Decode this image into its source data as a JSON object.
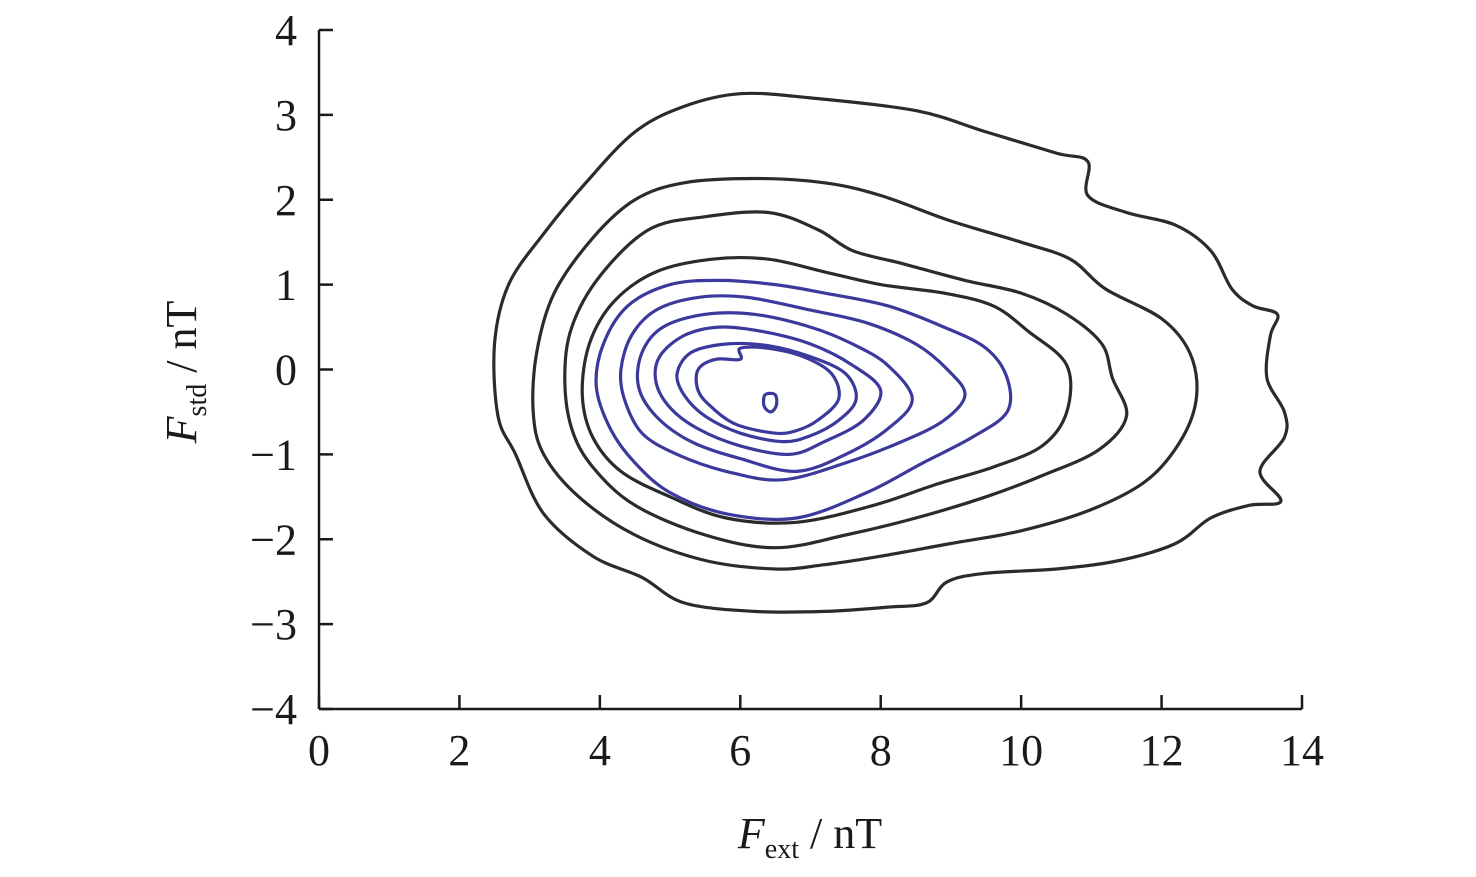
{
  "chart_data": {
    "type": "contour",
    "title": "",
    "xlabel": {
      "symbol": "F",
      "subscript": "ext",
      "unit": " / nT"
    },
    "ylabel": {
      "symbol": "F",
      "subscript": "std",
      "unit": " / nT"
    },
    "xlim": [
      0,
      14
    ],
    "ylim": [
      -4,
      4
    ],
    "x_ticks": [
      0,
      2,
      4,
      6,
      8,
      10,
      12,
      14
    ],
    "y_ticks": [
      -4,
      -3,
      -2,
      -1,
      0,
      1,
      2,
      3,
      4
    ],
    "x_tick_labels": [
      "0",
      "2",
      "4",
      "6",
      "8",
      "10",
      "12",
      "14"
    ],
    "y_tick_labels": [
      "−4",
      "−3",
      "−2",
      "−1",
      "0",
      "1",
      "2",
      "3",
      "4"
    ],
    "grid": false,
    "legend": "none",
    "colors": {
      "outer_contours": "#2b2b2b",
      "inner_contours": "#3b3a9c",
      "axis": "#1a1a1a"
    },
    "contours": [
      {
        "level_rank": 1,
        "color": "outer",
        "points": [
          [
            6.2,
            -2.85
          ],
          [
            5.2,
            -2.75
          ],
          [
            4.6,
            -2.45
          ],
          [
            3.9,
            -2.2
          ],
          [
            3.2,
            -1.7
          ],
          [
            2.8,
            -1.0
          ],
          [
            2.55,
            -0.55
          ],
          [
            2.5,
            0.3
          ],
          [
            2.7,
            1.0
          ],
          [
            3.2,
            1.6
          ],
          [
            3.8,
            2.2
          ],
          [
            4.5,
            2.8
          ],
          [
            5.2,
            3.1
          ],
          [
            6.0,
            3.25
          ],
          [
            7.0,
            3.2
          ],
          [
            8.5,
            3.05
          ],
          [
            9.5,
            2.8
          ],
          [
            10.5,
            2.55
          ],
          [
            10.95,
            2.45
          ],
          [
            10.95,
            2.05
          ],
          [
            11.5,
            1.85
          ],
          [
            12.2,
            1.7
          ],
          [
            12.7,
            1.4
          ],
          [
            13.0,
            0.95
          ],
          [
            13.3,
            0.75
          ],
          [
            13.65,
            0.65
          ],
          [
            13.55,
            0.4
          ],
          [
            13.5,
            -0.1
          ],
          [
            13.75,
            -0.5
          ],
          [
            13.75,
            -0.8
          ],
          [
            13.4,
            -1.2
          ],
          [
            13.7,
            -1.55
          ],
          [
            13.25,
            -1.6
          ],
          [
            12.7,
            -1.75
          ],
          [
            12.2,
            -2.05
          ],
          [
            11.4,
            -2.25
          ],
          [
            10.5,
            -2.35
          ],
          [
            9.5,
            -2.4
          ],
          [
            8.95,
            -2.5
          ],
          [
            8.65,
            -2.75
          ],
          [
            8.1,
            -2.8
          ],
          [
            7.2,
            -2.85
          ]
        ]
      },
      {
        "level_rank": 2,
        "color": "outer",
        "points": [
          [
            6.5,
            -2.35
          ],
          [
            5.5,
            -2.25
          ],
          [
            4.5,
            -1.95
          ],
          [
            3.7,
            -1.5
          ],
          [
            3.2,
            -1.0
          ],
          [
            3.05,
            -0.5
          ],
          [
            3.1,
            0.2
          ],
          [
            3.35,
            0.9
          ],
          [
            3.9,
            1.55
          ],
          [
            4.5,
            2.0
          ],
          [
            5.2,
            2.2
          ],
          [
            6.2,
            2.25
          ],
          [
            7.2,
            2.2
          ],
          [
            8.0,
            2.05
          ],
          [
            9.0,
            1.75
          ],
          [
            10.0,
            1.5
          ],
          [
            10.7,
            1.3
          ],
          [
            11.2,
            0.95
          ],
          [
            12.0,
            0.6
          ],
          [
            12.4,
            0.2
          ],
          [
            12.5,
            -0.3
          ],
          [
            12.3,
            -0.8
          ],
          [
            11.8,
            -1.3
          ],
          [
            11.0,
            -1.65
          ],
          [
            10.0,
            -1.9
          ],
          [
            9.0,
            -2.05
          ],
          [
            8.0,
            -2.2
          ],
          [
            7.2,
            -2.3
          ]
        ]
      },
      {
        "level_rank": 3,
        "color": "outer",
        "points": [
          [
            6.5,
            -2.1
          ],
          [
            5.5,
            -1.95
          ],
          [
            4.5,
            -1.6
          ],
          [
            3.9,
            -1.15
          ],
          [
            3.6,
            -0.7
          ],
          [
            3.5,
            -0.1
          ],
          [
            3.6,
            0.5
          ],
          [
            4.0,
            1.1
          ],
          [
            4.7,
            1.65
          ],
          [
            5.5,
            1.8
          ],
          [
            6.4,
            1.85
          ],
          [
            7.1,
            1.65
          ],
          [
            7.6,
            1.4
          ],
          [
            8.3,
            1.25
          ],
          [
            9.2,
            1.05
          ],
          [
            10.0,
            0.9
          ],
          [
            10.65,
            0.65
          ],
          [
            11.15,
            0.3
          ],
          [
            11.3,
            -0.1
          ],
          [
            11.5,
            -0.55
          ],
          [
            11.1,
            -0.95
          ],
          [
            10.3,
            -1.25
          ],
          [
            9.5,
            -1.5
          ],
          [
            8.5,
            -1.75
          ],
          [
            7.5,
            -1.95
          ]
        ]
      },
      {
        "level_rank": 4,
        "color": "outer",
        "points": [
          [
            6.8,
            -1.8
          ],
          [
            5.8,
            -1.75
          ],
          [
            5.0,
            -1.5
          ],
          [
            4.3,
            -1.2
          ],
          [
            3.9,
            -0.8
          ],
          [
            3.75,
            -0.3
          ],
          [
            3.85,
            0.3
          ],
          [
            4.2,
            0.8
          ],
          [
            4.8,
            1.15
          ],
          [
            5.6,
            1.3
          ],
          [
            6.4,
            1.3
          ],
          [
            7.2,
            1.15
          ],
          [
            8.0,
            1.0
          ],
          [
            8.9,
            0.9
          ],
          [
            9.6,
            0.75
          ],
          [
            10.1,
            0.45
          ],
          [
            10.65,
            0.05
          ],
          [
            10.65,
            -0.5
          ],
          [
            10.3,
            -0.9
          ],
          [
            9.6,
            -1.15
          ],
          [
            8.8,
            -1.35
          ],
          [
            7.9,
            -1.6
          ]
        ]
      },
      {
        "level_rank": 5,
        "color": "inner",
        "points": [
          [
            6.8,
            -1.75
          ],
          [
            5.8,
            -1.7
          ],
          [
            5.0,
            -1.45
          ],
          [
            4.5,
            -1.1
          ],
          [
            4.15,
            -0.7
          ],
          [
            3.95,
            -0.2
          ],
          [
            4.05,
            0.3
          ],
          [
            4.4,
            0.75
          ],
          [
            5.0,
            1.0
          ],
          [
            5.7,
            1.05
          ],
          [
            6.5,
            1.0
          ],
          [
            7.2,
            0.9
          ],
          [
            8.1,
            0.75
          ],
          [
            8.9,
            0.5
          ],
          [
            9.5,
            0.25
          ],
          [
            9.8,
            -0.1
          ],
          [
            9.8,
            -0.5
          ],
          [
            9.3,
            -0.8
          ],
          [
            8.6,
            -1.1
          ],
          [
            7.8,
            -1.45
          ]
        ]
      },
      {
        "level_rank": 6,
        "color": "inner",
        "points": [
          [
            6.6,
            -1.3
          ],
          [
            5.8,
            -1.2
          ],
          [
            5.1,
            -1.0
          ],
          [
            4.6,
            -0.75
          ],
          [
            4.35,
            -0.35
          ],
          [
            4.3,
            0.0
          ],
          [
            4.45,
            0.4
          ],
          [
            4.8,
            0.7
          ],
          [
            5.4,
            0.85
          ],
          [
            6.1,
            0.85
          ],
          [
            7.0,
            0.7
          ],
          [
            7.8,
            0.55
          ],
          [
            8.5,
            0.3
          ],
          [
            8.95,
            0.0
          ],
          [
            9.2,
            -0.3
          ],
          [
            8.9,
            -0.6
          ],
          [
            8.3,
            -0.85
          ],
          [
            7.5,
            -1.1
          ]
        ]
      },
      {
        "level_rank": 7,
        "color": "inner",
        "points": [
          [
            6.8,
            -1.2
          ],
          [
            6.0,
            -1.05
          ],
          [
            5.3,
            -0.85
          ],
          [
            4.8,
            -0.55
          ],
          [
            4.55,
            -0.2
          ],
          [
            4.6,
            0.2
          ],
          [
            4.9,
            0.5
          ],
          [
            5.5,
            0.65
          ],
          [
            6.2,
            0.65
          ],
          [
            7.0,
            0.5
          ],
          [
            7.6,
            0.3
          ],
          [
            8.1,
            0.05
          ],
          [
            8.45,
            -0.35
          ],
          [
            8.1,
            -0.7
          ],
          [
            7.5,
            -1.0
          ]
        ]
      },
      {
        "level_rank": 8,
        "color": "inner",
        "points": [
          [
            6.7,
            -1.0
          ],
          [
            6.0,
            -0.9
          ],
          [
            5.4,
            -0.7
          ],
          [
            5.0,
            -0.45
          ],
          [
            4.8,
            -0.15
          ],
          [
            4.85,
            0.15
          ],
          [
            5.2,
            0.4
          ],
          [
            5.7,
            0.5
          ],
          [
            6.3,
            0.45
          ],
          [
            7.0,
            0.3
          ],
          [
            7.6,
            0.05
          ],
          [
            8.0,
            -0.25
          ],
          [
            7.75,
            -0.6
          ],
          [
            7.2,
            -0.85
          ]
        ]
      },
      {
        "level_rank": 9,
        "color": "inner",
        "points": [
          [
            6.6,
            -0.85
          ],
          [
            6.0,
            -0.75
          ],
          [
            5.5,
            -0.55
          ],
          [
            5.2,
            -0.3
          ],
          [
            5.1,
            -0.05
          ],
          [
            5.3,
            0.2
          ],
          [
            5.8,
            0.3
          ],
          [
            6.4,
            0.28
          ],
          [
            7.0,
            0.15
          ],
          [
            7.5,
            -0.05
          ],
          [
            7.65,
            -0.35
          ],
          [
            7.4,
            -0.6
          ],
          [
            7.0,
            -0.78
          ]
        ]
      },
      {
        "level_rank": 10,
        "color": "inner",
        "points": [
          [
            6.5,
            -0.75
          ],
          [
            5.95,
            -0.65
          ],
          [
            5.6,
            -0.45
          ],
          [
            5.4,
            -0.25
          ],
          [
            5.4,
            0.0
          ],
          [
            5.65,
            0.12
          ],
          [
            6.0,
            0.12
          ],
          [
            6.0,
            0.25
          ],
          [
            6.4,
            0.25
          ],
          [
            6.9,
            0.15
          ],
          [
            7.3,
            -0.05
          ],
          [
            7.4,
            -0.35
          ],
          [
            7.1,
            -0.6
          ],
          [
            6.8,
            -0.72
          ]
        ]
      },
      {
        "level_rank": 11,
        "color": "inner",
        "points": [
          [
            6.43,
            -0.5
          ],
          [
            6.35,
            -0.45
          ],
          [
            6.33,
            -0.38
          ],
          [
            6.35,
            -0.3
          ],
          [
            6.43,
            -0.28
          ],
          [
            6.5,
            -0.3
          ],
          [
            6.52,
            -0.38
          ],
          [
            6.5,
            -0.45
          ]
        ]
      }
    ]
  }
}
